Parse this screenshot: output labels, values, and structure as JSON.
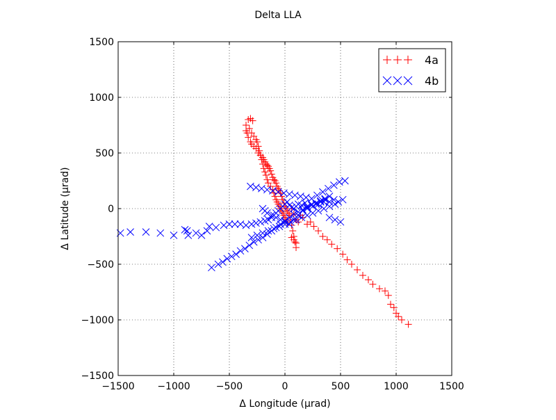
{
  "chart_data": {
    "type": "scatter",
    "title": "Delta LLA",
    "xlabel": "Δ Longitude (μrad)",
    "ylabel": "Δ Latitude (μrad)",
    "xlim": [
      -1500,
      1500
    ],
    "ylim": [
      -1500,
      1500
    ],
    "xticks": [
      -1500,
      -1000,
      -500,
      0,
      500,
      1000,
      1500
    ],
    "yticks": [
      -1500,
      -1000,
      -500,
      0,
      500,
      1000,
      1500
    ],
    "xtick_labels": [
      "−1500",
      "−1000",
      "−500",
      "0",
      "500",
      "1000",
      "1500"
    ],
    "ytick_labels": [
      "−1500",
      "−1000",
      "−500",
      "0",
      "500",
      "1000",
      "1500"
    ],
    "grid": true,
    "legend_position": "top-right",
    "series": [
      {
        "name": "4a",
        "marker": "plus",
        "color": "#ff0000",
        "x": [
          -330,
          -310,
          -290,
          -350,
          -350,
          -340,
          -330,
          -310,
          -300,
          -280,
          -260,
          -240,
          -220,
          -200,
          -190,
          -180,
          -170,
          -160,
          -150,
          -140,
          -130,
          -120,
          -110,
          -100,
          -90,
          -80,
          -70,
          -60,
          -50,
          -40,
          -30,
          -20,
          -10,
          0,
          10,
          20,
          30,
          40,
          50,
          60,
          70,
          80,
          90,
          100,
          100,
          80,
          60,
          -320,
          -300,
          -280,
          -260,
          -250,
          -240,
          -230,
          -220,
          -210,
          -200,
          -190,
          -180,
          -170,
          -160,
          -150,
          -130,
          -110,
          -100,
          -90,
          -80,
          -70,
          -60,
          -50,
          -40,
          -30,
          -20,
          -10,
          0,
          10,
          20,
          60,
          80,
          100,
          120,
          140,
          160,
          200,
          230,
          260,
          300,
          340,
          380,
          420,
          470,
          520,
          560,
          600,
          650,
          700,
          750,
          790,
          850,
          900,
          930,
          950,
          980,
          1000,
          1020,
          1050,
          1110
        ],
        "y": [
          800,
          810,
          790,
          700,
          750,
          680,
          640,
          600,
          580,
          560,
          540,
          500,
          480,
          460,
          440,
          420,
          400,
          390,
          380,
          360,
          340,
          310,
          280,
          260,
          250,
          230,
          200,
          180,
          160,
          140,
          110,
          80,
          50,
          20,
          0,
          -20,
          -40,
          -60,
          -100,
          -150,
          -200,
          -250,
          -300,
          -350,
          -310,
          -280,
          -260,
          720,
          680,
          650,
          620,
          600,
          560,
          520,
          480,
          440,
          400,
          360,
          330,
          300,
          260,
          230,
          200,
          170,
          140,
          110,
          80,
          60,
          40,
          20,
          0,
          -20,
          -40,
          -60,
          -80,
          -100,
          -120,
          0,
          -50,
          -100,
          -120,
          -60,
          -80,
          -140,
          -120,
          -160,
          -200,
          -250,
          -280,
          -320,
          -360,
          -410,
          -460,
          -500,
          -550,
          -600,
          -640,
          -680,
          -720,
          -740,
          -780,
          -860,
          -890,
          -940,
          -970,
          -1000,
          -1040
        ]
      },
      {
        "name": "4b",
        "marker": "x",
        "color": "#0000ff",
        "x": [
          -1480,
          -1390,
          -1250,
          -1120,
          -1000,
          -900,
          -880,
          -870,
          -800,
          -750,
          -700,
          -680,
          -620,
          -550,
          -500,
          -450,
          -400,
          -350,
          -300,
          -260,
          -220,
          -180,
          -150,
          -120,
          -100,
          -80,
          -60,
          -40,
          -20,
          0,
          20,
          40,
          60,
          80,
          100,
          120,
          150,
          180,
          200,
          240,
          280,
          320,
          360,
          400,
          440,
          480,
          520,
          -660,
          -600,
          -560,
          -520,
          -480,
          -440,
          -400,
          -360,
          -320,
          -280,
          -240,
          -200,
          -160,
          -120,
          -80,
          -40,
          0,
          40,
          80,
          120,
          160,
          200,
          240,
          280,
          320,
          360,
          400,
          -310,
          -260,
          -210,
          -160,
          -110,
          -60,
          -10,
          40,
          90,
          140,
          190,
          240,
          290,
          340,
          390,
          440,
          490,
          540,
          -200,
          -180,
          -160,
          -120,
          -80,
          -40,
          0,
          40,
          80,
          120,
          160,
          200,
          250,
          300,
          350,
          400,
          450,
          500,
          -300,
          -250,
          -200,
          -150,
          -100,
          -50,
          0,
          50,
          100,
          150,
          200,
          250,
          300,
          350,
          400,
          450
        ],
        "y": [
          -220,
          -210,
          -210,
          -220,
          -240,
          -190,
          -200,
          -240,
          -220,
          -240,
          -200,
          -160,
          -170,
          -150,
          -140,
          -140,
          -140,
          -150,
          -140,
          -130,
          -120,
          -110,
          -100,
          -80,
          -60,
          -40,
          -20,
          0,
          20,
          40,
          60,
          30,
          10,
          0,
          20,
          40,
          30,
          50,
          20,
          40,
          40,
          60,
          80,
          60,
          80,
          60,
          80,
          -530,
          -500,
          -480,
          -450,
          -430,
          -410,
          -380,
          -360,
          -330,
          -300,
          -280,
          -260,
          -230,
          -200,
          -170,
          -140,
          -110,
          -80,
          -50,
          -30,
          -10,
          10,
          30,
          50,
          70,
          90,
          110,
          200,
          190,
          180,
          170,
          160,
          150,
          140,
          130,
          120,
          110,
          100,
          90,
          120,
          150,
          180,
          210,
          240,
          250,
          0,
          -20,
          -40,
          -60,
          -80,
          -100,
          -120,
          -140,
          -100,
          -60,
          -20,
          0,
          20,
          40,
          60,
          -80,
          -100,
          -120,
          -260,
          -240,
          -220,
          -200,
          -180,
          -160,
          -140,
          -120,
          -100,
          -80,
          -60,
          -40,
          -20,
          0,
          20,
          40
        ]
      }
    ]
  }
}
